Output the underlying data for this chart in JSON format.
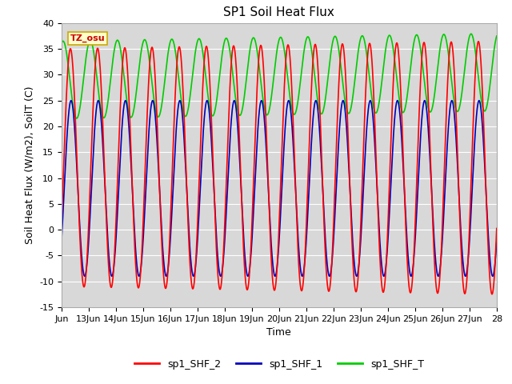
{
  "title": "SP1 Soil Heat Flux",
  "ylabel": "Soil Heat Flux (W/m2), SoilT (C)",
  "xlabel": "Time",
  "ylim": [
    -15,
    40
  ],
  "xlim_start": 0,
  "xlim_end": 16,
  "xtick_labels": [
    "Jun",
    "13Jun",
    "14Jun",
    "15Jun",
    "16Jun",
    "17Jun",
    "18Jun",
    "19Jun",
    "20Jun",
    "21Jun",
    "22Jun",
    "23Jun",
    "24Jun",
    "25Jun",
    "26Jun",
    "27Jun",
    "28"
  ],
  "xtick_positions": [
    0,
    1,
    2,
    3,
    4,
    5,
    6,
    7,
    8,
    9,
    10,
    11,
    12,
    13,
    14,
    15,
    16
  ],
  "ytick_labels": [
    "-15",
    "-10",
    "-5",
    "0",
    "5",
    "10",
    "15",
    "20",
    "25",
    "30",
    "35",
    "40"
  ],
  "ytick_positions": [
    -15,
    -10,
    -5,
    0,
    5,
    10,
    15,
    20,
    25,
    30,
    35,
    40
  ],
  "legend_labels": [
    "sp1_SHF_2",
    "sp1_SHF_1",
    "sp1_SHF_T"
  ],
  "legend_colors": [
    "#ff0000",
    "#0000bb",
    "#00cc00"
  ],
  "annotation_text": "TZ_osu",
  "annotation_color": "#cc0000",
  "annotation_bg": "#ffffcc",
  "annotation_border": "#ccaa00",
  "plot_bg_color": "#d8d8d8",
  "grid_color": "#ffffff",
  "title_fontsize": 11,
  "label_fontsize": 9,
  "tick_fontsize": 8,
  "line_width": 1.2,
  "fig_width": 6.4,
  "fig_height": 4.8,
  "dpi": 100
}
